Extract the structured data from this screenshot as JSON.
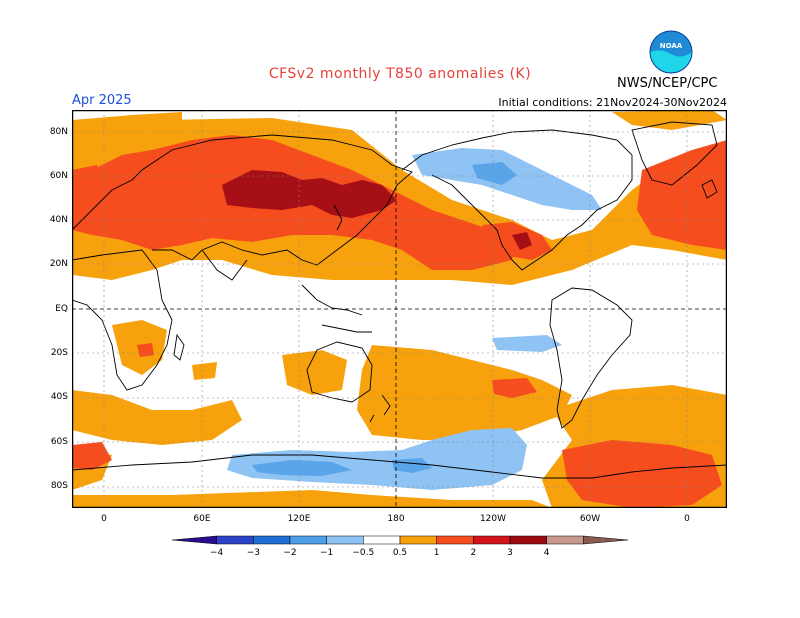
{
  "header": {
    "title": "CFSv2 monthly T850 anomalies (K)",
    "month": "Apr 2025",
    "initial_conditions": "Initial conditions: 21Nov2024-30Nov2024",
    "agency": "NWS/NCEP/CPC",
    "logo_text": "NOAA"
  },
  "axes": {
    "lat_labels": [
      "80N",
      "60N",
      "40N",
      "20N",
      "EQ",
      "20S",
      "40S",
      "60S",
      "80S"
    ],
    "lon_labels": [
      "0",
      "60E",
      "120E",
      "180",
      "120W",
      "60W",
      "0"
    ]
  },
  "colorbar": {
    "labels": [
      "−4",
      "−3",
      "−2",
      "−1",
      "−0.5",
      "0.5",
      "1",
      "2",
      "3",
      "4"
    ],
    "colors": [
      "#2a0d8e",
      "#2d43c7",
      "#1e6fd6",
      "#4f9ee8",
      "#8ec3f4",
      "#ffffff",
      "#f7a20d",
      "#f54d1e",
      "#d4121b",
      "#9c0a10",
      "#c89a8e",
      "#8a5a50"
    ]
  },
  "colors": {
    "light_blue": "#8ec3f4",
    "mid_blue": "#5aa4ea",
    "orange": "#f7a20d",
    "red_orange": "#f54d1e",
    "dark_red": "#a50f15",
    "title_red": "#e8413a",
    "month_blue": "#1c4fd6"
  }
}
